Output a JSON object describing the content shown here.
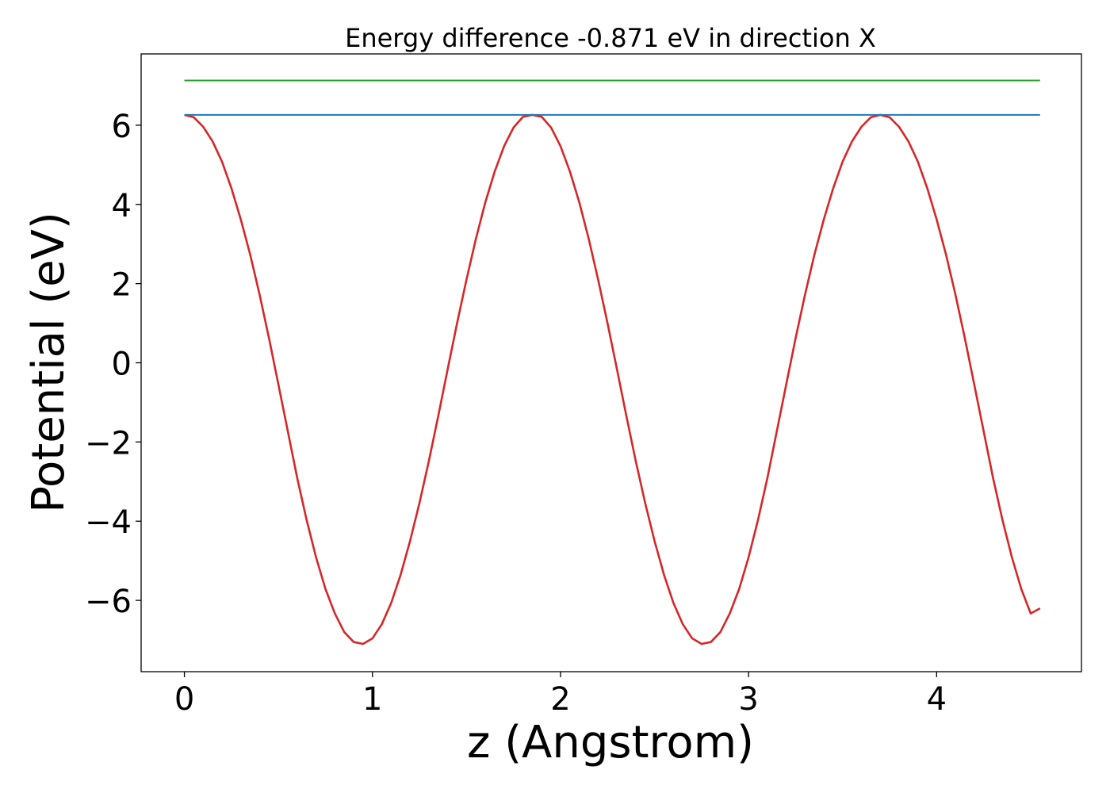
{
  "chart_data": {
    "type": "line",
    "title": "Energy difference -0.871 eV in direction X",
    "xlabel": "z (Angstrom)",
    "ylabel": "Potential (eV)",
    "xlim": [
      -0.23,
      4.77
    ],
    "ylim": [
      -7.8,
      7.8
    ],
    "xticks": [
      0,
      1,
      2,
      3,
      4
    ],
    "yticks": [
      -6,
      -4,
      -2,
      0,
      2,
      4,
      6
    ],
    "xtick_labels": [
      "0",
      "1",
      "2",
      "3",
      "4"
    ],
    "ytick_labels": [
      "−6",
      "−4",
      "−2",
      "0",
      "2",
      "4",
      "6"
    ],
    "grid": false,
    "legend": "none",
    "series": [
      {
        "color": "#d62728",
        "x": [
          0.0,
          0.05,
          0.1,
          0.15,
          0.2,
          0.25,
          0.3,
          0.35,
          0.4,
          0.45,
          0.5,
          0.55,
          0.6,
          0.65,
          0.7,
          0.75,
          0.8,
          0.85,
          0.9,
          0.95,
          1.0,
          1.05,
          1.1,
          1.15,
          1.2,
          1.25,
          1.3,
          1.35,
          1.4,
          1.45,
          1.5,
          1.55,
          1.6,
          1.65,
          1.7,
          1.75,
          1.8,
          1.85,
          1.9,
          1.95,
          2.0,
          2.05,
          2.1,
          2.15,
          2.2,
          2.25,
          2.3,
          2.35,
          2.4,
          2.45,
          2.5,
          2.55,
          2.6,
          2.65,
          2.7,
          2.75,
          2.8,
          2.85,
          2.9,
          2.95,
          3.0,
          3.05,
          3.1,
          3.15,
          3.2,
          3.25,
          3.3,
          3.35,
          3.4,
          3.45,
          3.5,
          3.55,
          3.6,
          3.65,
          3.7,
          3.75,
          3.8,
          3.85,
          3.9,
          3.95,
          4.0,
          4.05,
          4.1,
          4.15,
          4.2,
          4.25,
          4.3,
          4.35,
          4.4,
          4.45,
          4.5,
          4.55
        ],
        "y": [
          6.26,
          6.2,
          5.96,
          5.59,
          5.08,
          4.41,
          3.62,
          2.73,
          1.72,
          0.62,
          -0.55,
          -1.73,
          -2.91,
          -3.97,
          -4.91,
          -5.71,
          -6.33,
          -6.8,
          -7.05,
          -7.1,
          -6.96,
          -6.6,
          -6.06,
          -5.35,
          -4.5,
          -3.54,
          -2.48,
          -1.34,
          -0.16,
          1.0,
          2.1,
          3.13,
          4.05,
          4.83,
          5.47,
          5.94,
          6.21,
          6.26,
          6.21,
          5.94,
          5.47,
          4.83,
          4.05,
          3.13,
          2.1,
          1.0,
          -0.16,
          -1.34,
          -2.48,
          -3.54,
          -4.5,
          -5.35,
          -6.06,
          -6.6,
          -6.96,
          -7.1,
          -7.05,
          -6.8,
          -6.33,
          -5.71,
          -4.91,
          -3.97,
          -2.91,
          -1.73,
          -0.55,
          0.62,
          1.72,
          2.73,
          3.62,
          4.41,
          5.08,
          5.59,
          5.96,
          6.2,
          6.26,
          6.2,
          5.96,
          5.59,
          5.08,
          4.41,
          3.62,
          2.73,
          1.72,
          0.62,
          -0.55,
          -1.73,
          -2.91,
          -3.97,
          -4.91,
          -5.71,
          -6.33,
          -6.2
        ]
      },
      {
        "color": "#1f77b4",
        "x": [
          0.0,
          4.55
        ],
        "y": [
          6.26,
          6.26
        ]
      },
      {
        "color": "#2ca02c",
        "x": [
          0.0,
          4.55
        ],
        "y": [
          7.13,
          7.13
        ]
      }
    ]
  }
}
